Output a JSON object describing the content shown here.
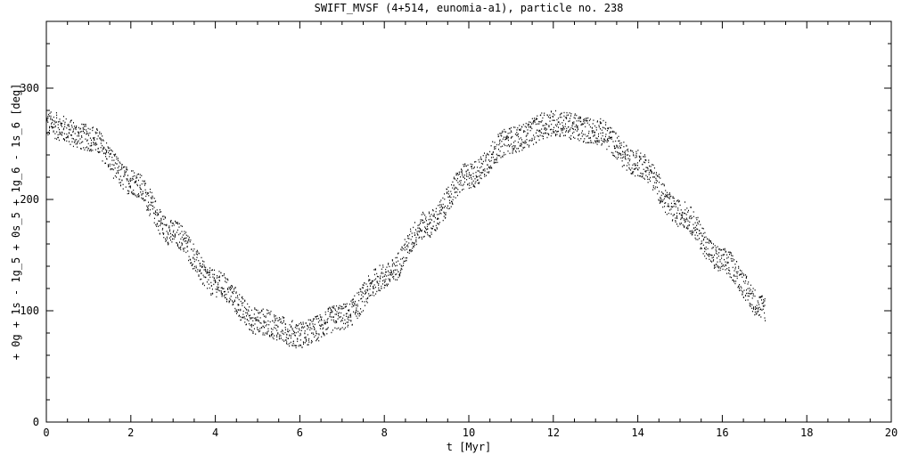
{
  "chart_data": {
    "type": "scatter",
    "title": "SWIFT_MVSF (4+514, eunomia-a1), particle no. 238",
    "xlabel": "t [Myr]",
    "ylabel": "+ 0g + 1s - 1g_5 + 0s_5 + 1g_6 - 1s_6 [deg]",
    "xlim": [
      0,
      20
    ],
    "ylim": [
      0,
      360
    ],
    "x_ticks": [
      0,
      2,
      4,
      6,
      8,
      10,
      12,
      14,
      16,
      18,
      20
    ],
    "y_ticks": [
      0,
      100,
      200,
      300
    ],
    "x_tick_labels": [
      "0",
      "2",
      "4",
      "6",
      "8",
      "10",
      "12",
      "14",
      "16",
      "18",
      "20"
    ],
    "y_tick_labels": [
      "0",
      "100",
      "200",
      "300"
    ],
    "x_range_of_data": [
      0,
      17
    ],
    "grid": false,
    "legend": "none",
    "series": [
      {
        "marker_color": "#000000",
        "trend": [
          {
            "x": 0.0,
            "y": 268
          },
          {
            "x": 1.0,
            "y": 256
          },
          {
            "x": 2.0,
            "y": 217
          },
          {
            "x": 3.0,
            "y": 170
          },
          {
            "x": 4.0,
            "y": 125
          },
          {
            "x": 5.0,
            "y": 91
          },
          {
            "x": 6.0,
            "y": 79
          },
          {
            "x": 7.0,
            "y": 95
          },
          {
            "x": 8.0,
            "y": 131
          },
          {
            "x": 9.0,
            "y": 178
          },
          {
            "x": 10.0,
            "y": 222
          },
          {
            "x": 11.0,
            "y": 254
          },
          {
            "x": 12.0,
            "y": 269
          },
          {
            "x": 13.0,
            "y": 262
          },
          {
            "x": 14.0,
            "y": 233
          },
          {
            "x": 15.0,
            "y": 188
          },
          {
            "x": 16.0,
            "y": 145
          },
          {
            "x": 17.0,
            "y": 103
          }
        ],
        "scatter_half_width": 12
      }
    ]
  }
}
